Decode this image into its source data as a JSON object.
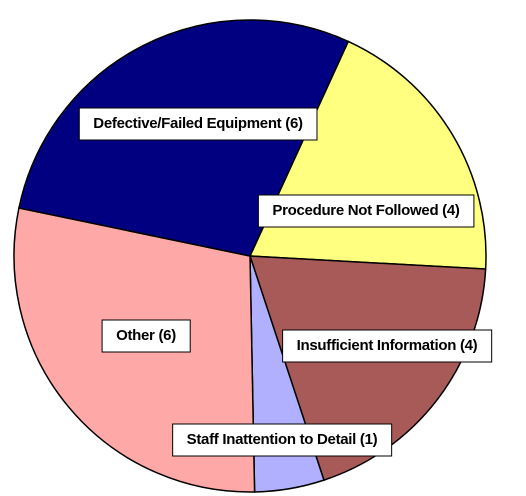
{
  "chart_data": {
    "type": "pie",
    "values": [
      4,
      4,
      1,
      6,
      6
    ],
    "value_labels": [
      "Procedure Not Followed (4)",
      "Insufficient Information (4)",
      "Staff Inattention to Detail (1)",
      "Other (6)",
      "Defective/Failed Equipment (6)"
    ],
    "colors": [
      "#ffff80",
      "#a85a58",
      "#b0b0ff",
      "#ffa8a8",
      "#000080"
    ]
  }
}
